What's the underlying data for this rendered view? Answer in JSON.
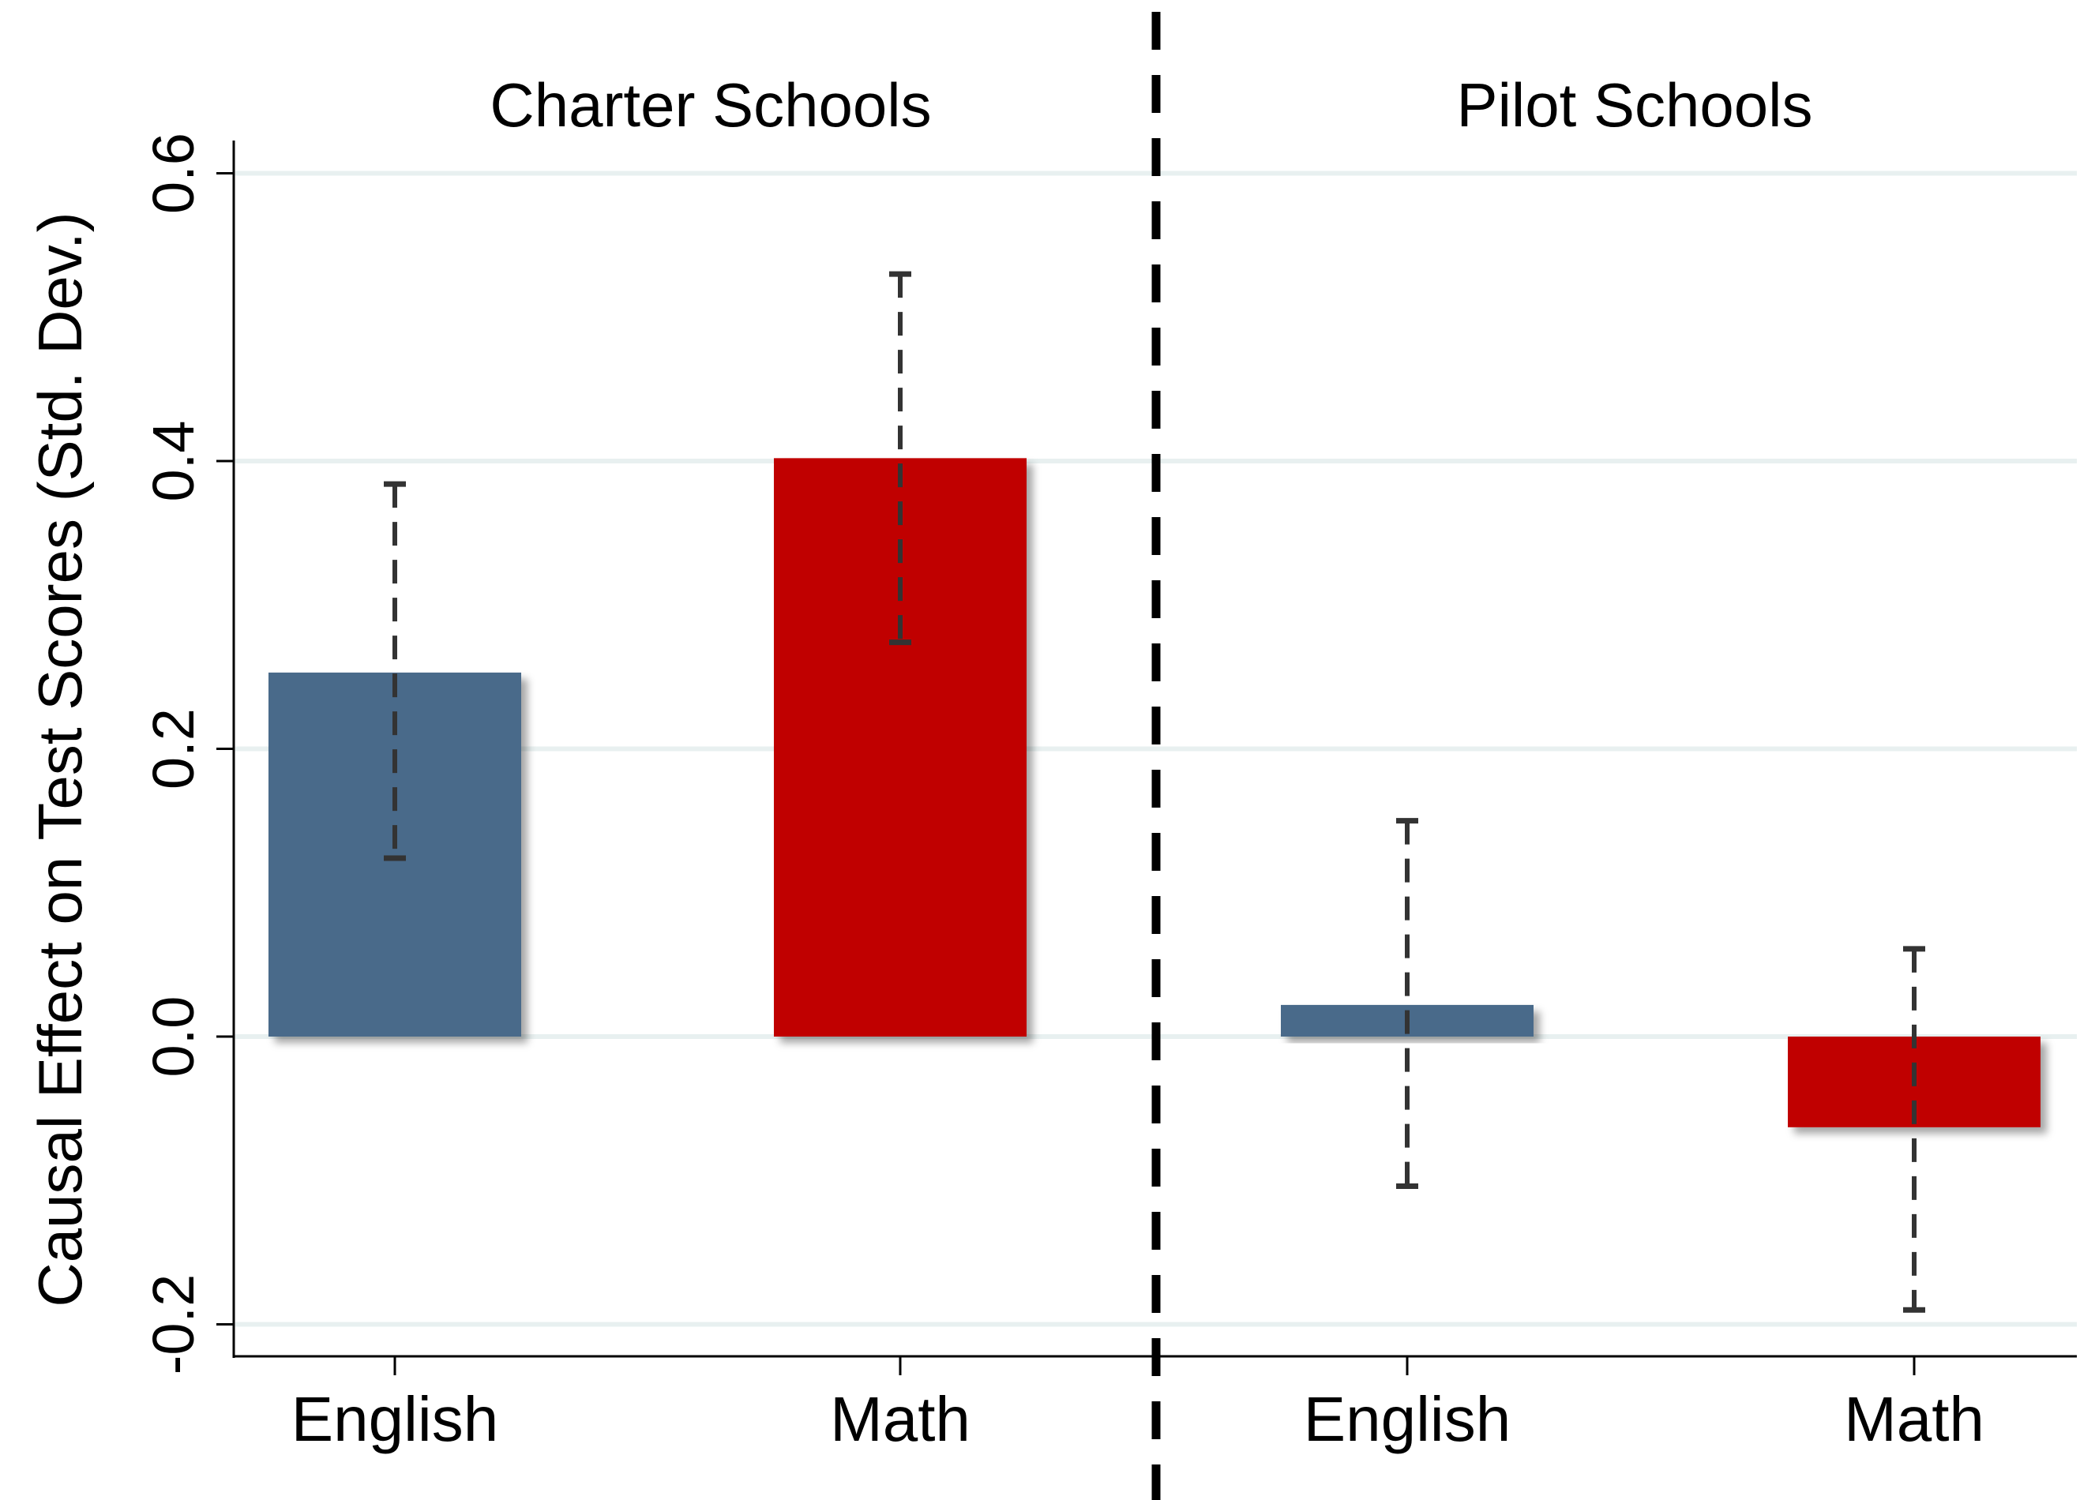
{
  "chart_data": {
    "type": "bar",
    "ylabel": "Causal Effect on Test Scores (Std. Dev.)",
    "ylim": [
      -0.225,
      0.625
    ],
    "yticks": [
      -0.2,
      0.0,
      0.2,
      0.4,
      0.6
    ],
    "ytick_labels": [
      "-0.2",
      "0.0",
      "0.2",
      "0.4",
      "0.6"
    ],
    "grid": true,
    "error_bars": "dashed",
    "groups": [
      {
        "title": "Charter Schools",
        "bars": [
          {
            "label": "English",
            "value": 0.253,
            "ci": [
              0.124,
              0.384
            ],
            "color": "#4a6a8a"
          },
          {
            "label": "Math",
            "value": 0.402,
            "ci": [
              0.274,
              0.53
            ],
            "color": "#c00000"
          }
        ]
      },
      {
        "title": "Pilot Schools",
        "bars": [
          {
            "label": "English",
            "value": 0.022,
            "ci": [
              -0.104,
              0.15
            ],
            "color": "#4a6a8a"
          },
          {
            "label": "Math",
            "value": -0.063,
            "ci": [
              -0.19,
              0.061
            ],
            "color": "#c00000"
          }
        ]
      }
    ],
    "divider": "dashed vertical line between groups"
  },
  "colors": {
    "english": "#4a6a8a",
    "math": "#c00000",
    "grid": "#e8f0f0",
    "axis": "#000000",
    "error_bar": "#333333"
  }
}
